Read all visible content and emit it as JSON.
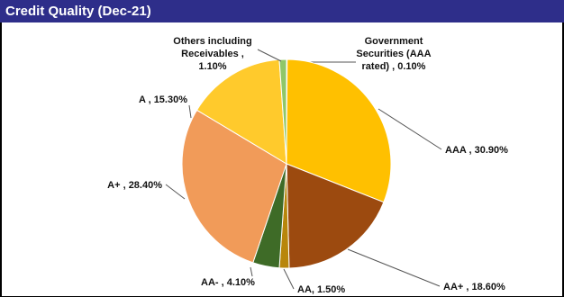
{
  "header": {
    "title": "Credit Quality (Dec-21)"
  },
  "chart_data": {
    "type": "pie",
    "title": "Credit Quality (Dec-21)",
    "slices": [
      {
        "label": "Government Securities (AAA rated)",
        "value": 0.1,
        "color": "#2c4a8a",
        "text_lines": [
          "Government",
          "Securities (AAA",
          "rated) , 0.10%"
        ]
      },
      {
        "label": "AAA",
        "value": 30.9,
        "color": "#ffc000",
        "text_lines": [
          "AAA , 30.90%"
        ]
      },
      {
        "label": "AA+",
        "value": 18.6,
        "color": "#9c4a0f",
        "text_lines": [
          "AA+ , 18.60%"
        ]
      },
      {
        "label": "AA",
        "value": 1.5,
        "color": "#b8860b",
        "text_lines": [
          "AA, 1.50%"
        ]
      },
      {
        "label": "AA-",
        "value": 4.1,
        "color": "#3e6b27",
        "text_lines": [
          "AA- , 4.10%"
        ]
      },
      {
        "label": "A+",
        "value": 28.4,
        "color": "#f19b59",
        "text_lines": [
          "A+ , 28.40%"
        ]
      },
      {
        "label": "A",
        "value": 15.3,
        "color": "#ffca2c",
        "text_lines": [
          "A , 15.30%"
        ]
      },
      {
        "label": "Others including Receivables",
        "value": 1.1,
        "color": "#8fc769",
        "text_lines": [
          "Others including",
          "Receivables ,",
          "1.10%"
        ]
      }
    ]
  }
}
